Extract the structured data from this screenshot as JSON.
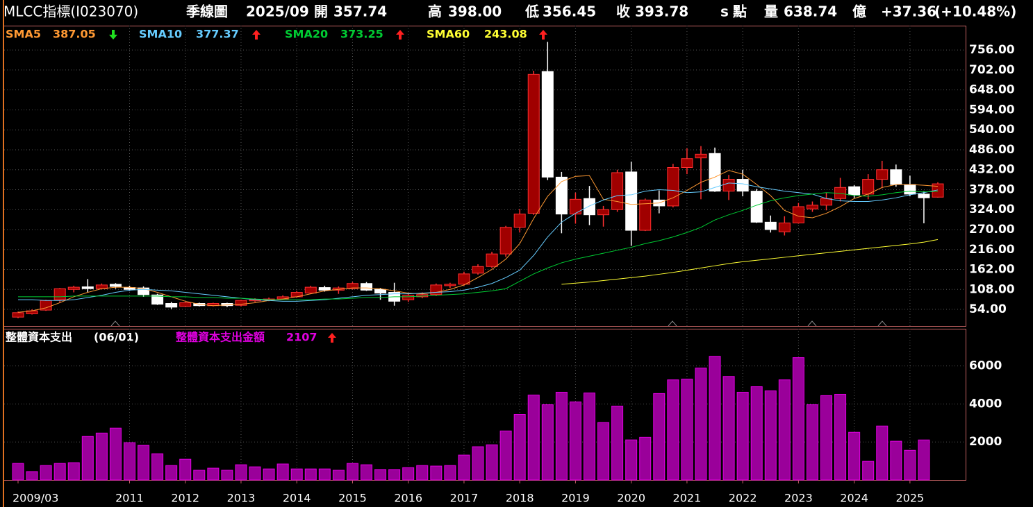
{
  "chart_data": [
    {
      "type": "candlestick",
      "title": "MLCC指標(I023070)",
      "annotations": [
        "季線圖",
        "2025/09",
        "開",
        "357.74",
        "高",
        "398.00",
        "低",
        "356.45",
        "收",
        "393.78",
        "s",
        "點",
        "量",
        "638.74",
        "億",
        "+37.36",
        "(+10.48%)"
      ],
      "up_color": "#a00000",
      "up_edge": "#ff3030",
      "down_color": "#ffffff",
      "open": [
        33,
        42,
        52,
        80,
        108,
        115,
        110,
        122,
        113,
        112,
        93,
        70,
        62,
        70,
        64,
        70,
        65,
        77,
        80,
        82,
        88,
        98,
        113,
        106,
        110,
        124,
        108,
        100,
        80,
        88,
        94,
        118,
        122,
        152,
        170,
        204,
        276,
        314,
        698,
        412,
        312,
        354,
        310,
        324,
        426,
        268,
        350,
        334,
        438,
        464,
        476,
        374,
        406,
        374,
        290,
        264,
        288,
        326,
        336,
        354,
        386,
        366,
        406,
        432,
        392,
        366,
        357.74
      ],
      "high": [
        48,
        54,
        80,
        112,
        118,
        136,
        124,
        125,
        118,
        116,
        96,
        74,
        74,
        72,
        72,
        72,
        80,
        84,
        86,
        92,
        104,
        118,
        118,
        116,
        128,
        128,
        112,
        126,
        98,
        100,
        124,
        126,
        156,
        176,
        210,
        280,
        326,
        700,
        778,
        426,
        370,
        388,
        334,
        432,
        454,
        354,
        376,
        448,
        490,
        496,
        492,
        418,
        432,
        380,
        308,
        306,
        342,
        346,
        370,
        410,
        390,
        420,
        456,
        446,
        416,
        374,
        398
      ],
      "low": [
        30,
        40,
        50,
        72,
        100,
        100,
        108,
        110,
        104,
        88,
        66,
        55,
        60,
        62,
        62,
        60,
        62,
        74,
        76,
        80,
        86,
        96,
        102,
        96,
        108,
        104,
        80,
        64,
        74,
        84,
        90,
        112,
        118,
        148,
        166,
        196,
        262,
        310,
        404,
        260,
        286,
        282,
        278,
        318,
        226,
        266,
        314,
        330,
        420,
        352,
        372,
        350,
        360,
        288,
        262,
        254,
        286,
        318,
        322,
        346,
        356,
        352,
        382,
        386,
        360,
        287,
        356.45
      ],
      "close": [
        45,
        50,
        78,
        110,
        114,
        110,
        120,
        116,
        108,
        94,
        68,
        60,
        72,
        64,
        70,
        64,
        78,
        80,
        82,
        88,
        100,
        114,
        106,
        112,
        124,
        106,
        98,
        76,
        92,
        94,
        120,
        122,
        150,
        170,
        204,
        276,
        312,
        690,
        412,
        312,
        352,
        310,
        324,
        424,
        268,
        350,
        334,
        438,
        462,
        474,
        374,
        406,
        374,
        290,
        270,
        288,
        332,
        336,
        354,
        384,
        364,
        406,
        432,
        392,
        366,
        356,
        393.78
      ],
      "series": [
        {
          "name": "SMA5",
          "color": "#ff9933",
          "values": [
            46,
            50,
            58,
            72,
            88,
            100,
            110,
            114,
            114,
            110,
            100,
            88,
            76,
            68,
            64,
            66,
            68,
            72,
            78,
            82,
            88,
            96,
            104,
            108,
            112,
            112,
            110,
            104,
            98,
            96,
            100,
            108,
            120,
            140,
            162,
            190,
            232,
            300,
            360,
            400,
            414,
            416,
            352,
            346,
            338,
            340,
            342,
            356,
            376,
            398,
            412,
            430,
            420,
            392,
            362,
            322,
            306,
            302,
            314,
            332,
            354,
            366,
            384,
            392,
            392,
            390,
            387.05
          ]
        },
        {
          "name": "SMA10",
          "color": "#66ccff",
          "values": [
            80,
            80,
            78,
            78,
            80,
            86,
            92,
            100,
            106,
            108,
            106,
            104,
            100,
            96,
            92,
            88,
            84,
            80,
            78,
            76,
            76,
            78,
            80,
            84,
            88,
            92,
            94,
            96,
            96,
            98,
            100,
            102,
            106,
            114,
            124,
            140,
            160,
            200,
            250,
            290,
            314,
            334,
            350,
            362,
            364,
            374,
            378,
            376,
            370,
            372,
            384,
            396,
            394,
            386,
            380,
            374,
            370,
            366,
            354,
            348,
            346,
            346,
            350,
            356,
            364,
            370,
            377.37
          ]
        },
        {
          "name": "SMA20",
          "color": "#00cc33",
          "values": [
            88,
            88,
            88,
            88,
            90,
            90,
            90,
            90,
            90,
            90,
            90,
            88,
            88,
            86,
            86,
            84,
            84,
            82,
            80,
            80,
            80,
            80,
            82,
            82,
            84,
            86,
            86,
            88,
            88,
            90,
            92,
            94,
            96,
            100,
            104,
            110,
            130,
            150,
            166,
            180,
            190,
            198,
            206,
            214,
            222,
            232,
            240,
            250,
            262,
            276,
            296,
            310,
            322,
            336,
            348,
            356,
            362,
            366,
            370,
            368,
            362,
            360,
            364,
            370,
            374,
            372,
            373.25
          ]
        },
        {
          "name": "SMA60",
          "color": "#ffff33",
          "values": [
            null,
            null,
            null,
            null,
            null,
            null,
            null,
            null,
            null,
            null,
            null,
            null,
            null,
            null,
            null,
            null,
            null,
            null,
            null,
            null,
            null,
            null,
            null,
            null,
            null,
            null,
            null,
            null,
            null,
            null,
            null,
            null,
            null,
            null,
            null,
            null,
            null,
            null,
            null,
            122,
            125,
            128,
            132,
            136,
            140,
            144,
            149,
            154,
            160,
            166,
            172,
            178,
            183,
            187,
            191,
            195,
            199,
            203,
            207,
            211,
            215,
            219,
            223,
            227,
            231,
            236,
            243.08
          ]
        }
      ],
      "ylim": [
        9,
        822
      ],
      "yticks": [
        {
          "value": 54,
          "label": "54.00"
        },
        {
          "value": 108,
          "label": "108.00"
        },
        {
          "value": 162,
          "label": "162.00"
        },
        {
          "value": 216,
          "label": "216.00"
        },
        {
          "value": 270,
          "label": "270.00"
        },
        {
          "value": 324,
          "label": "324.00"
        },
        {
          "value": 378,
          "label": "378.00"
        },
        {
          "value": 432,
          "label": "432.00"
        },
        {
          "value": 486,
          "label": "486.00"
        },
        {
          "value": 540,
          "label": "540.00"
        },
        {
          "value": 594,
          "label": "594.00"
        },
        {
          "value": 648,
          "label": "648.00"
        },
        {
          "value": 702,
          "label": "702.00"
        },
        {
          "value": 756,
          "label": "756.00"
        }
      ],
      "grid": true
    },
    {
      "type": "bar",
      "title": "整體資本支出",
      "subtitle": "(06/01)",
      "categories": [
        "2009/03",
        null,
        null,
        null,
        null,
        null,
        null,
        null,
        "2011",
        null,
        null,
        null,
        "2012",
        null,
        null,
        null,
        "2013",
        null,
        null,
        null,
        "2014",
        null,
        null,
        null,
        "2015",
        null,
        null,
        null,
        "2016",
        null,
        null,
        null,
        "2017",
        null,
        null,
        null,
        "2018",
        null,
        null,
        null,
        "2019",
        null,
        null,
        null,
        "2020",
        null,
        null,
        null,
        "2021",
        null,
        null,
        null,
        "2022",
        null,
        null,
        null,
        "2023",
        null,
        null,
        null,
        "2024",
        null,
        null,
        null,
        "2025",
        null,
        null
      ],
      "series": [
        {
          "name": "整體資本支出金額",
          "color": "#9a009a",
          "edge": "#e000e0",
          "values": [
            870,
            440,
            760,
            870,
            910,
            2290,
            2470,
            2730,
            1960,
            1820,
            1380,
            760,
            1090,
            510,
            620,
            510,
            800,
            690,
            580,
            840,
            580,
            580,
            580,
            510,
            870,
            800,
            550,
            550,
            650,
            760,
            730,
            760,
            1310,
            1750,
            1850,
            2580,
            3450,
            4470,
            3960,
            4620,
            4110,
            4580,
            3020,
            3890,
            2110,
            2250,
            4550,
            5270,
            5310,
            5890,
            6510,
            5450,
            4620,
            4910,
            4690,
            5270,
            6440,
            3960,
            4440,
            4510,
            2510,
            980,
            2840,
            2040,
            1560,
            2107,
            null
          ]
        }
      ],
      "ylim": [
        0,
        7960
      ],
      "yticks": [
        2000,
        4000,
        6000
      ],
      "grid": true
    }
  ]
}
